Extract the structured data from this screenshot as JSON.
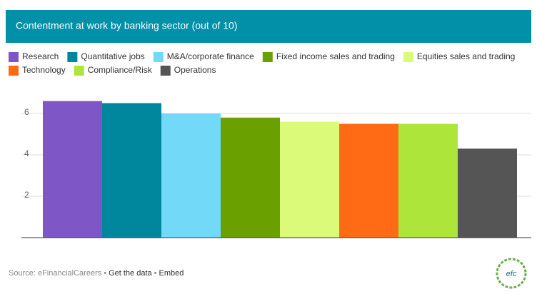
{
  "chart_data": {
    "type": "bar",
    "title": "Contentment at work by banking sector (out of 10)",
    "series": [
      {
        "name": "Research",
        "color": "#7f56c5",
        "values": [
          6.6
        ]
      },
      {
        "name": "Quantitative jobs",
        "color": "#00879e",
        "values": [
          6.5
        ]
      },
      {
        "name": "M&A/corporate finance",
        "color": "#72d9f9",
        "values": [
          6.0
        ]
      },
      {
        "name": "Fixed income sales and trading",
        "color": "#6aa100",
        "values": [
          5.8
        ]
      },
      {
        "name": "Equities sales and trading",
        "color": "#dbfa7a",
        "values": [
          5.6
        ]
      },
      {
        "name": "Technology",
        "color": "#ff6b14",
        "values": [
          5.5
        ]
      },
      {
        "name": "Compliance/Risk",
        "color": "#aee53b",
        "values": [
          5.5
        ]
      },
      {
        "name": "Operations",
        "color": "#555555",
        "values": [
          4.3
        ]
      }
    ],
    "ylim": [
      0,
      7
    ],
    "yticks": [
      2,
      4,
      6
    ],
    "grid": true
  },
  "footer": {
    "source": "Source: eFinancialCareers",
    "links": [
      "Get the data",
      "Embed"
    ],
    "logo": "efc"
  }
}
